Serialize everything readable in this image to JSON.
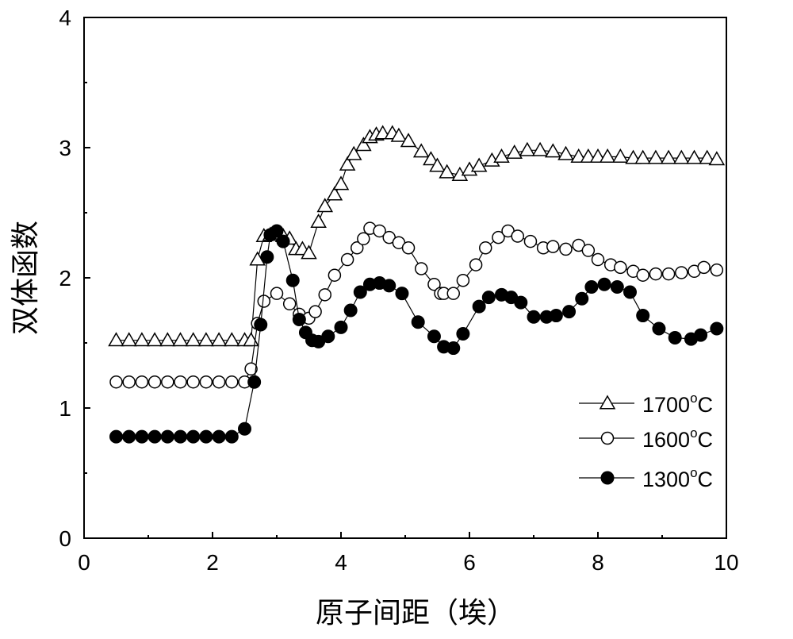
{
  "chart_data": {
    "type": "line",
    "title": "",
    "xlabel": "原子间距（埃）",
    "ylabel": "双体函数",
    "xlim": [
      0,
      10
    ],
    "ylim": [
      0,
      4
    ],
    "xticks": [
      0,
      2,
      4,
      6,
      8,
      10
    ],
    "yticks": [
      0,
      1,
      2,
      3,
      4
    ],
    "legend_position": "bottom-right",
    "series": [
      {
        "name": "1700°C",
        "label_main": "1700",
        "label_sup": "o",
        "label_unit": "C",
        "marker": "open-triangle",
        "x": [
          0.5,
          0.7,
          0.9,
          1.1,
          1.3,
          1.5,
          1.7,
          1.9,
          2.1,
          2.3,
          2.5,
          2.6,
          2.7,
          2.8,
          2.9,
          3.0,
          3.1,
          3.2,
          3.3,
          3.4,
          3.5,
          3.65,
          3.75,
          3.9,
          4.0,
          4.1,
          4.2,
          4.35,
          4.45,
          4.55,
          4.65,
          4.8,
          4.9,
          5.05,
          5.25,
          5.4,
          5.5,
          5.65,
          5.85,
          6.0,
          6.15,
          6.35,
          6.5,
          6.7,
          6.9,
          7.1,
          7.3,
          7.5,
          7.7,
          7.85,
          8.0,
          8.15,
          8.35,
          8.55,
          8.7,
          8.9,
          9.1,
          9.3,
          9.5,
          9.7,
          9.85
        ],
        "y": [
          1.52,
          1.52,
          1.52,
          1.52,
          1.52,
          1.52,
          1.52,
          1.52,
          1.52,
          1.52,
          1.52,
          1.52,
          2.14,
          2.32,
          2.33,
          2.34,
          2.32,
          2.3,
          2.22,
          2.22,
          2.19,
          2.43,
          2.55,
          2.64,
          2.72,
          2.87,
          2.95,
          3.02,
          3.08,
          3.1,
          3.11,
          3.11,
          3.09,
          3.05,
          2.97,
          2.91,
          2.86,
          2.81,
          2.79,
          2.83,
          2.86,
          2.9,
          2.93,
          2.96,
          2.98,
          2.98,
          2.97,
          2.95,
          2.93,
          2.93,
          2.93,
          2.93,
          2.93,
          2.92,
          2.92,
          2.92,
          2.92,
          2.92,
          2.92,
          2.92,
          2.91
        ]
      },
      {
        "name": "1600°C",
        "label_main": "1600",
        "label_sup": "o",
        "label_unit": "C",
        "marker": "open-circle",
        "x": [
          0.5,
          0.7,
          0.9,
          1.1,
          1.3,
          1.5,
          1.7,
          1.9,
          2.1,
          2.3,
          2.5,
          2.6,
          2.7,
          2.8,
          3.0,
          3.2,
          3.35,
          3.5,
          3.6,
          3.75,
          3.9,
          4.1,
          4.25,
          4.35,
          4.45,
          4.6,
          4.75,
          4.9,
          5.05,
          5.25,
          5.45,
          5.55,
          5.6,
          5.75,
          5.9,
          6.1,
          6.25,
          6.45,
          6.6,
          6.75,
          6.95,
          7.15,
          7.3,
          7.5,
          7.7,
          7.85,
          8.0,
          8.2,
          8.35,
          8.55,
          8.7,
          8.9,
          9.1,
          9.3,
          9.5,
          9.65,
          9.85
        ],
        "y": [
          1.2,
          1.2,
          1.2,
          1.2,
          1.2,
          1.2,
          1.2,
          1.2,
          1.2,
          1.2,
          1.2,
          1.3,
          1.65,
          1.82,
          1.88,
          1.8,
          1.72,
          1.69,
          1.74,
          1.87,
          2.02,
          2.14,
          2.23,
          2.3,
          2.38,
          2.36,
          2.31,
          2.27,
          2.23,
          2.07,
          1.95,
          1.88,
          1.88,
          1.88,
          1.98,
          2.1,
          2.23,
          2.31,
          2.36,
          2.32,
          2.28,
          2.23,
          2.24,
          2.22,
          2.25,
          2.21,
          2.14,
          2.1,
          2.08,
          2.05,
          2.02,
          2.03,
          2.03,
          2.04,
          2.05,
          2.08,
          2.06
        ]
      },
      {
        "name": "1300°C",
        "label_main": "1300",
        "label_sup": "o",
        "label_unit": "C",
        "marker": "filled-circle",
        "x": [
          0.5,
          0.7,
          0.9,
          1.1,
          1.3,
          1.5,
          1.7,
          1.9,
          2.1,
          2.3,
          2.5,
          2.65,
          2.75,
          2.85,
          2.9,
          3.0,
          3.1,
          3.25,
          3.35,
          3.45,
          3.55,
          3.65,
          3.8,
          4.0,
          4.15,
          4.3,
          4.45,
          4.6,
          4.75,
          4.95,
          5.2,
          5.45,
          5.6,
          5.75,
          5.9,
          6.15,
          6.3,
          6.5,
          6.65,
          6.8,
          7.0,
          7.2,
          7.35,
          7.55,
          7.75,
          7.9,
          8.1,
          8.3,
          8.5,
          8.7,
          8.95,
          9.2,
          9.45,
          9.6,
          9.85
        ],
        "y": [
          0.78,
          0.78,
          0.78,
          0.78,
          0.78,
          0.78,
          0.78,
          0.78,
          0.78,
          0.78,
          0.84,
          1.2,
          1.64,
          2.16,
          2.33,
          2.36,
          2.28,
          1.98,
          1.68,
          1.58,
          1.52,
          1.51,
          1.55,
          1.62,
          1.75,
          1.89,
          1.95,
          1.96,
          1.94,
          1.88,
          1.66,
          1.55,
          1.47,
          1.46,
          1.57,
          1.78,
          1.85,
          1.87,
          1.85,
          1.81,
          1.7,
          1.7,
          1.71,
          1.74,
          1.84,
          1.93,
          1.95,
          1.93,
          1.89,
          1.71,
          1.61,
          1.54,
          1.53,
          1.56,
          1.61
        ]
      }
    ]
  }
}
